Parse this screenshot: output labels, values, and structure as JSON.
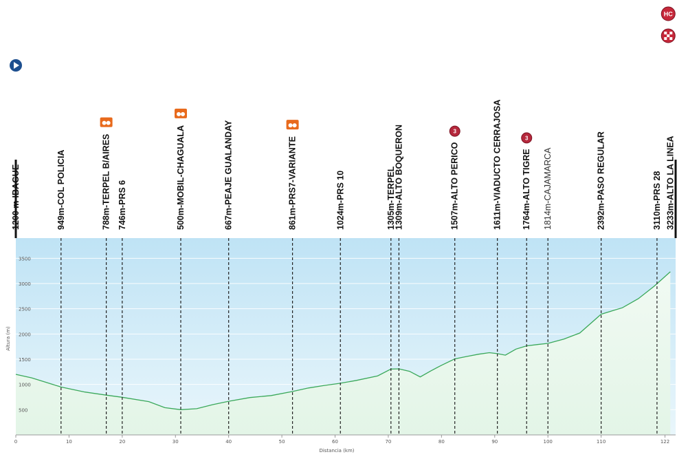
{
  "chart_data": {
    "type": "area",
    "xlabel": "Distancia (km)",
    "ylabel": "Altura (m)",
    "xlim": [
      0,
      124
    ],
    "ylim": [
      0,
      3900
    ],
    "x_ticks": [
      0,
      10,
      20,
      30,
      40,
      50,
      60,
      70,
      80,
      90,
      100,
      110,
      122
    ],
    "y_ticks": [
      500,
      1000,
      1500,
      2000,
      2500,
      3000,
      3500
    ],
    "colors": {
      "profile_line": "#3aa85a",
      "sky_top": "#bfe3f5",
      "ground_bottom": "#e6f6ea"
    },
    "profile": {
      "x": [
        0,
        3,
        8.5,
        13,
        17,
        20,
        25,
        28,
        31,
        34,
        37,
        40,
        44,
        48,
        52,
        55,
        58,
        61,
        64,
        68,
        70.5,
        72,
        74,
        76,
        78,
        80,
        82.5,
        85,
        87,
        89,
        90.5,
        92,
        94,
        96,
        98,
        100,
        103,
        106,
        110,
        114,
        117,
        120,
        123
      ],
      "y": [
        1200,
        1130,
        949,
        850,
        788,
        746,
        660,
        540,
        500,
        520,
        600,
        667,
        740,
        780,
        861,
        930,
        980,
        1024,
        1080,
        1170,
        1305,
        1309,
        1260,
        1150,
        1270,
        1380,
        1507,
        1560,
        1600,
        1630,
        1611,
        1580,
        1700,
        1764,
        1790,
        1814,
        1900,
        2020,
        2392,
        2520,
        2700,
        2950,
        3233
      ]
    },
    "waypoints": [
      {
        "x": 0,
        "label": "1200 m-IBAGUE",
        "style": "bold",
        "marker": "start-icon"
      },
      {
        "x": 8.5,
        "label": "949m-COL POLICIA",
        "style": "bold"
      },
      {
        "x": 17,
        "label": "788m-TERPEL B/AIRES",
        "style": "bold",
        "marker": "feed-zone-icon"
      },
      {
        "x": 20,
        "label": "746m-PRS 6",
        "style": "bold"
      },
      {
        "x": 31,
        "label": "500m-MOBIL-CHAGUALA",
        "style": "bold",
        "marker": "feed-zone-icon"
      },
      {
        "x": 40,
        "label": "667m-PEAJE GUALANDAY",
        "style": "bold"
      },
      {
        "x": 52,
        "label": "861m-PRS7-VARIANTE",
        "style": "bold",
        "marker": "feed-zone-icon"
      },
      {
        "x": 61,
        "label": "1024m-PRS 10",
        "style": "bold"
      },
      {
        "x": 70.5,
        "label": "1305m-TERPEL",
        "style": "bold"
      },
      {
        "x": 72,
        "label": "1309m-ALTO BOQUERON",
        "style": "bold"
      },
      {
        "x": 82.5,
        "label": "1507m-ALTO PERICO",
        "style": "bold",
        "marker": "climb-cat3-icon",
        "marker_text": "3"
      },
      {
        "x": 90.5,
        "label": "1611m-VIADUCTO CERRAJOSA",
        "style": "bold"
      },
      {
        "x": 96,
        "label": "1764m-ALTO TIGRE",
        "style": "bold",
        "marker": "climb-cat3-icon",
        "marker_text": "3"
      },
      {
        "x": 100,
        "label": "1814m-CAJAMARCA",
        "style": "light"
      },
      {
        "x": 110,
        "label": "2392m-PASO REGULAR",
        "style": "bold"
      },
      {
        "x": 120.5,
        "label": "3110m-PRS 28",
        "style": "bold"
      },
      {
        "x": 123,
        "label": "3233m-ALTO LA LINEA",
        "style": "bold",
        "marker": "climb-hc-icon",
        "marker_text": "HC"
      }
    ],
    "finish_marker": "finish-icon"
  }
}
